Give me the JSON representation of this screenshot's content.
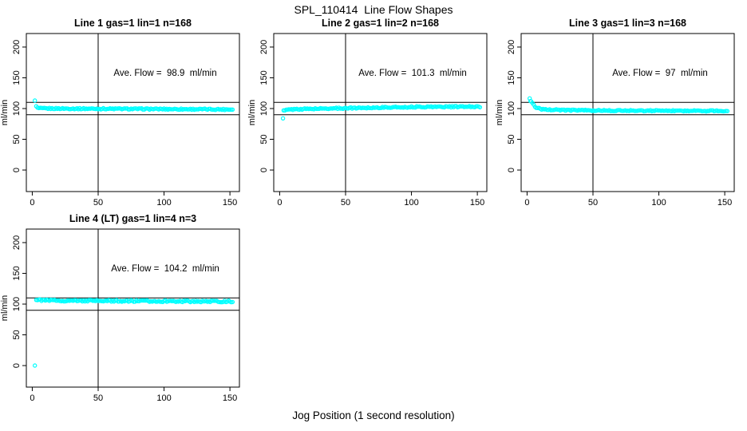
{
  "page": {
    "title": "SPL_110414  Line Flow Shapes",
    "xlabel": "Jog Position (1 second resolution)"
  },
  "chart_data": {
    "type": "scatter",
    "title": "SPL_110414  Line Flow Shapes",
    "xlabel": "Jog Position (1 second resolution)",
    "ylabel": "ml/min",
    "x_ticks": [
      0,
      50,
      100,
      150
    ],
    "y_ticks": [
      0,
      50,
      100,
      150,
      200
    ],
    "x_range": [
      -4.5,
      157.2
    ],
    "y_range": [
      -35,
      222
    ],
    "grid": false,
    "point_color": "#00ffff",
    "point_style": "open-circle",
    "reference_lines": {
      "horizontal": [
        110,
        90
      ],
      "vertical": [
        50
      ]
    },
    "subplots": [
      {
        "title": "Line 1 gas=1 lin=1 n=168",
        "annotation": "Ave. Flow =  98.9  ml/min",
        "ave_flow_ml_min": 98.9,
        "n": 168,
        "x_start": 3,
        "x_end": 152,
        "profile": [
          [
            3,
            103.5
          ],
          [
            4,
            101
          ],
          [
            6,
            100.2
          ],
          [
            20,
            100
          ],
          [
            60,
            99.6
          ],
          [
            100,
            99.2
          ],
          [
            152,
            98.6
          ]
        ],
        "outliers": [
          [
            2,
            113
          ]
        ],
        "band_halfwidth": 1.0,
        "seed": 1
      },
      {
        "title": "Line 2 gas=1 lin=2 n=168",
        "annotation": "Ave. Flow =  101.3  ml/min",
        "ave_flow_ml_min": 101.3,
        "n": 168,
        "x_start": 3,
        "x_end": 152,
        "profile": [
          [
            3,
            96.5
          ],
          [
            6,
            98
          ],
          [
            12,
            99
          ],
          [
            40,
            100.3
          ],
          [
            80,
            101.8
          ],
          [
            110,
            102.8
          ],
          [
            152,
            103
          ]
        ],
        "outliers": [
          [
            2.5,
            84
          ]
        ],
        "band_halfwidth": 1.0,
        "seed": 2
      },
      {
        "title": "Line 3 gas=1 lin=3 n=168",
        "annotation": "Ave. Flow =  97  ml/min",
        "ave_flow_ml_min": 97,
        "n": 168,
        "x_start": 2,
        "x_end": 152,
        "profile": [
          [
            2,
            116
          ],
          [
            3,
            112.5
          ],
          [
            4,
            108.5
          ],
          [
            5,
            105.5
          ],
          [
            7,
            102
          ],
          [
            10,
            99.5
          ],
          [
            15,
            98
          ],
          [
            40,
            97
          ],
          [
            90,
            96.5
          ],
          [
            152,
            96
          ]
        ],
        "outliers": [
          [
            2.6,
            112
          ]
        ],
        "band_halfwidth": 1.0,
        "seed": 3
      },
      {
        "title": "Line 4 (LT) gas=1 lin=4 n=3",
        "annotation": "Ave. Flow =  104.2  ml/min",
        "ave_flow_ml_min": 104.2,
        "n": 3,
        "x_start": 3,
        "x_end": 152,
        "profile": [
          [
            3,
            107
          ],
          [
            8,
            106.2
          ],
          [
            25,
            105.6
          ],
          [
            60,
            105.2
          ],
          [
            100,
            104.8
          ],
          [
            152,
            104.2
          ]
        ],
        "outliers": [
          [
            2,
            0
          ]
        ],
        "band_halfwidth": 1.3,
        "seed": 4
      }
    ]
  }
}
